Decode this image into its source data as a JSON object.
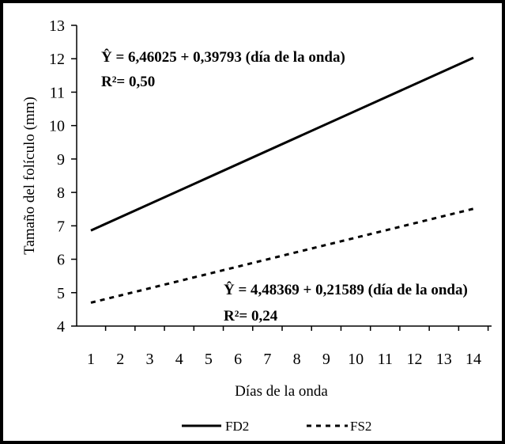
{
  "chart_data": {
    "type": "line",
    "xlabel": "Días de la onda",
    "ylabel": "Tamaño del folículo (mm)",
    "x": [
      1,
      14
    ],
    "xlim": [
      1,
      14
    ],
    "ylim": [
      4,
      13
    ],
    "x_ticks": [
      "1",
      "2",
      "3",
      "4",
      "5",
      "6",
      "7",
      "8",
      "9",
      "10",
      "11",
      "12",
      "13",
      "14"
    ],
    "y_ticks": [
      "4",
      "5",
      "6",
      "7",
      "8",
      "9",
      "10",
      "11",
      "12",
      "13"
    ],
    "grid": false,
    "legend_position": "bottom",
    "series": [
      {
        "name": "FD2",
        "values": [
          6.86,
          12.03
        ],
        "style": "solid",
        "color": "#000000"
      },
      {
        "name": "FS2",
        "values": [
          4.7,
          7.51
        ],
        "style": "dashed",
        "color": "#000000"
      }
    ],
    "annotations": [
      {
        "id": "fd2-equation",
        "text": "Ŷ = 6,46025 + 0,39793 (día de la onda)"
      },
      {
        "id": "fd2-r2",
        "text": "R²= 0,50"
      },
      {
        "id": "fs2-equation",
        "text": "Ŷ = 4,48369 + 0,21589 (día de la onda)"
      },
      {
        "id": "fs2-r2",
        "text": "R²= 0,24"
      }
    ]
  }
}
